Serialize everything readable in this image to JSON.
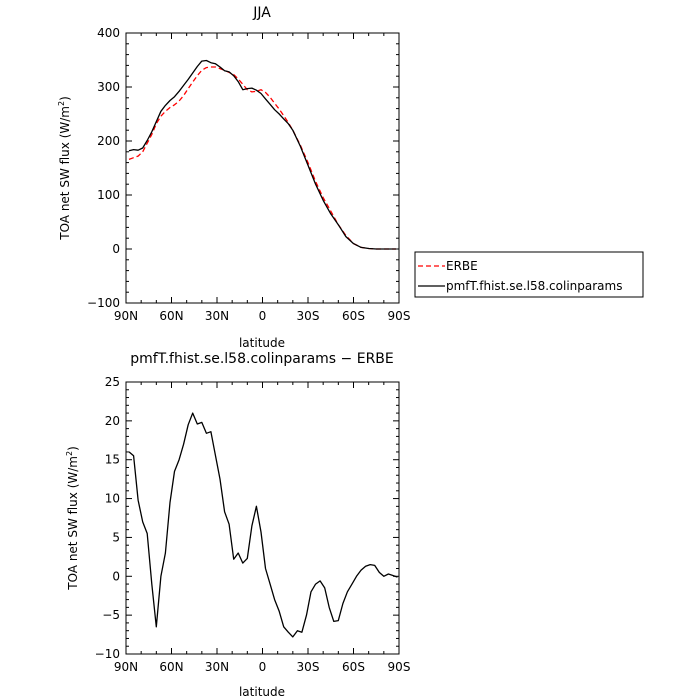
{
  "chart_data": [
    {
      "type": "line",
      "title": "JJA",
      "xlabel": "latitude",
      "ylabel_main": "TOA net SW flux (W/m",
      "ylabel_sup": "2",
      "ylabel_close": ")",
      "xlim": [
        90,
        -90
      ],
      "ylim": [
        -100,
        400
      ],
      "x_ticks": [
        90,
        60,
        30,
        0,
        -30,
        -60,
        -90
      ],
      "x_tick_labels": [
        "90N",
        "60N",
        "30N",
        "0",
        "30S",
        "60S",
        "90S"
      ],
      "y_ticks": [
        400,
        300,
        200,
        100,
        0,
        -100
      ],
      "y_tick_labels": [
        "400",
        "300",
        "200",
        "100",
        "0",
        "−100"
      ],
      "legend_position": "right",
      "series": [
        {
          "name": "ERBE",
          "color": "#ff0000",
          "dash": true,
          "x": [
            88,
            85,
            82,
            79,
            76,
            73,
            70,
            67,
            64,
            61,
            58,
            55,
            52,
            49,
            46,
            43,
            40,
            37,
            34,
            31,
            28,
            25,
            22,
            19,
            16,
            13,
            10,
            7,
            4,
            1,
            -2,
            -5,
            -8,
            -11,
            -14,
            -17,
            -20,
            -25,
            -30,
            -35,
            -40,
            -45,
            -50,
            -55,
            -60,
            -65,
            -70,
            -75,
            -80,
            -85,
            -88
          ],
          "y": [
            166,
            169,
            172,
            180,
            196,
            212,
            232,
            246,
            255,
            262,
            267,
            274,
            284,
            297,
            309,
            321,
            331,
            336,
            337,
            337,
            334,
            331,
            327,
            323,
            315,
            305,
            295,
            291,
            292,
            295,
            290,
            281,
            270,
            259,
            247,
            234,
            220,
            192,
            160,
            125,
            95,
            70,
            45,
            25,
            10,
            3,
            1,
            0,
            0,
            0,
            0
          ]
        },
        {
          "name": "pmfT.fhist.se.l58.colinparams",
          "color": "#000000",
          "dash": false,
          "x": [
            88,
            85,
            82,
            79,
            76,
            73,
            70,
            67,
            64,
            61,
            58,
            55,
            52,
            49,
            46,
            43,
            40,
            37,
            34,
            31,
            28,
            25,
            22,
            19,
            16,
            13,
            10,
            7,
            4,
            1,
            -2,
            -5,
            -8,
            -11,
            -14,
            -17,
            -20,
            -25,
            -30,
            -35,
            -40,
            -45,
            -50,
            -55,
            -60,
            -65,
            -70,
            -75,
            -80,
            -85,
            -88
          ],
          "y": [
            182,
            184,
            183,
            187,
            201,
            217,
            236,
            255,
            266,
            275,
            282,
            292,
            303,
            314,
            326,
            338,
            348,
            349,
            345,
            343,
            337,
            330,
            328,
            321,
            310,
            295,
            297,
            298,
            294,
            288,
            278,
            268,
            258,
            250,
            241,
            232,
            220,
            190,
            155,
            120,
            90,
            65,
            45,
            23,
            10,
            3,
            1,
            0,
            0,
            0,
            0
          ]
        }
      ]
    },
    {
      "type": "line",
      "title": "pmfT.fhist.se.l58.colinparams − ERBE",
      "xlabel": "latitude",
      "ylabel_main": "TOA net SW flux (W/m",
      "ylabel_sup": "2",
      "ylabel_close": ")",
      "xlim": [
        90,
        -90
      ],
      "ylim": [
        -10,
        25
      ],
      "x_ticks": [
        90,
        60,
        30,
        0,
        -30,
        -60,
        -90
      ],
      "x_tick_labels": [
        "90N",
        "60N",
        "30N",
        "0",
        "30S",
        "60S",
        "90S"
      ],
      "y_ticks": [
        25,
        20,
        15,
        10,
        5,
        0,
        -5,
        -10
      ],
      "y_tick_labels": [
        "25",
        "20",
        "15",
        "10",
        "5",
        "0",
        "−5",
        "−10"
      ],
      "series": [
        {
          "color": "#000000",
          "dash": false,
          "x": [
            88,
            85,
            82,
            79,
            76,
            73,
            70,
            67,
            64,
            61,
            58,
            55,
            52,
            49,
            46,
            43,
            40,
            37,
            34,
            31,
            28,
            25,
            22,
            19,
            16,
            13,
            10,
            7,
            4,
            1,
            -2,
            -5,
            -8,
            -11,
            -14,
            -17,
            -20,
            -23,
            -26,
            -29,
            -32,
            -35,
            -38,
            -41,
            -44,
            -47,
            -50,
            -53,
            -56,
            -59,
            -62,
            -65,
            -68,
            -71,
            -74,
            -77,
            -80,
            -83,
            -86,
            -89
          ],
          "y": [
            16,
            15.5,
            9.8,
            7,
            5.5,
            -1,
            -6.5,
            0,
            3,
            9.5,
            13.5,
            15,
            17,
            19.5,
            21,
            19.6,
            19.8,
            18.4,
            18.6,
            15.5,
            12.5,
            8.3,
            6.7,
            2.2,
            3,
            1.7,
            2.3,
            6.5,
            9,
            5.7,
            1,
            -1,
            -3,
            -4.5,
            -6.5,
            -7.2,
            -7.8,
            -7,
            -7.2,
            -5,
            -2,
            -1,
            -0.6,
            -1.5,
            -4,
            -5.8,
            -5.7,
            -3.5,
            -2,
            -1,
            0,
            0.8,
            1.3,
            1.5,
            1.4,
            0.5,
            0,
            0.3,
            0.1,
            -0.1
          ]
        }
      ]
    }
  ]
}
